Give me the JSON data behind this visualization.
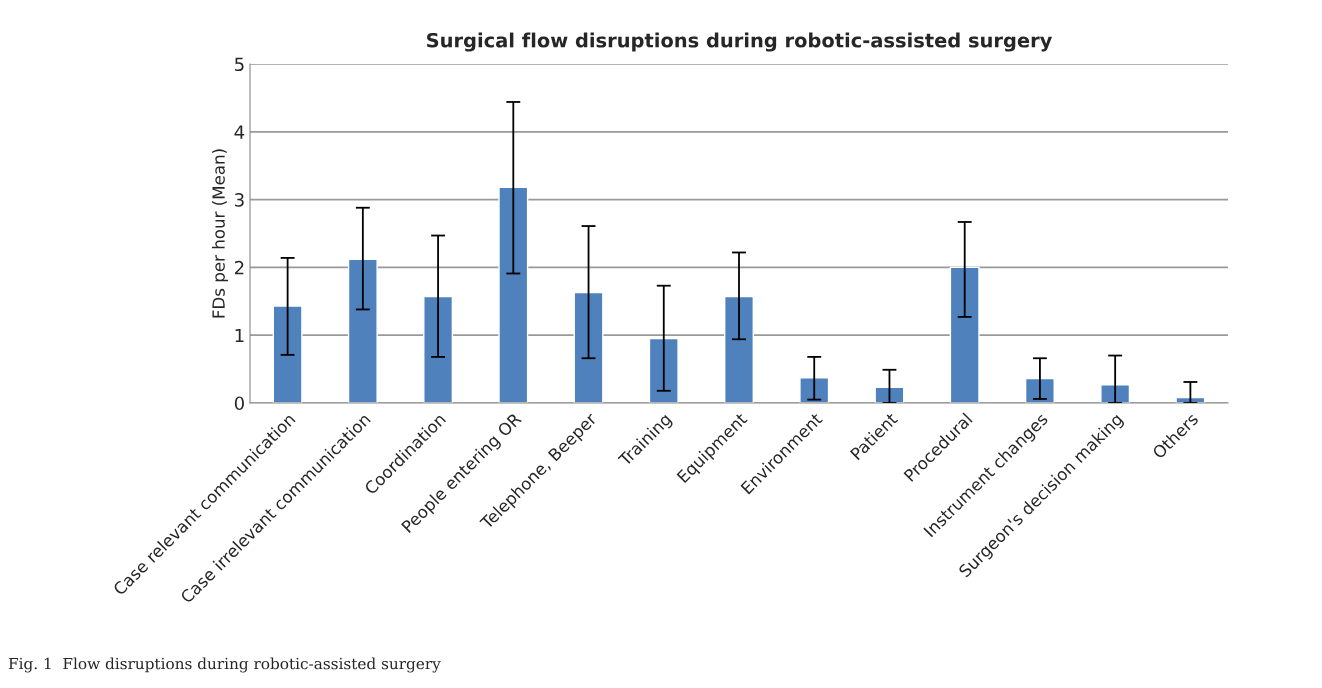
{
  "chart_data": {
    "type": "bar",
    "title": "Surgical flow disruptions during robotic-assisted surgery",
    "ylabel": "FDs per hour (Mean)",
    "categories": [
      "Case relevant communication",
      "Case irrelevant communication",
      "Coordination",
      "People entering OR",
      "Telephone, Beeper",
      "Training",
      "Equipment",
      "Environment",
      "Patient",
      "Procedural",
      "Instrument changes",
      "Surgeon's decision making",
      "Others"
    ],
    "values": [
      1.43,
      2.12,
      1.57,
      3.18,
      1.63,
      0.95,
      1.57,
      0.37,
      0.23,
      2.0,
      0.36,
      0.27,
      0.08
    ],
    "errors": [
      [
        0.71,
        2.14
      ],
      [
        1.38,
        2.88
      ],
      [
        0.68,
        2.47
      ],
      [
        1.91,
        4.44
      ],
      [
        0.66,
        2.61
      ],
      [
        0.18,
        1.73
      ],
      [
        0.94,
        2.22
      ],
      [
        0.05,
        0.68
      ],
      [
        0.0,
        0.49
      ],
      [
        1.27,
        2.67
      ],
      [
        0.06,
        0.66
      ],
      [
        0.0,
        0.7
      ],
      [
        0.0,
        0.31
      ]
    ],
    "color": "#4f81bd",
    "ylim": [
      0,
      5
    ],
    "yticks": [
      0,
      1,
      2,
      3,
      4,
      5
    ],
    "grid": "y",
    "annotations": [
      "Fig. 1  Flow disruptions during robotic-assisted surgery"
    ]
  }
}
